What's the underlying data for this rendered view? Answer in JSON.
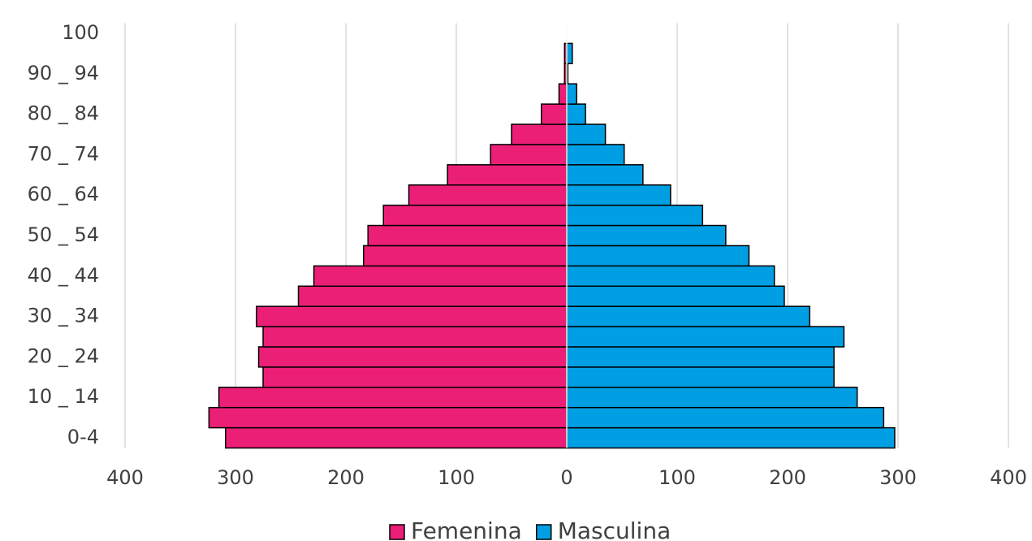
{
  "chart_data": {
    "type": "pyramid",
    "categories": [
      "0-4",
      null,
      "10 _ 14",
      null,
      "20 _ 24",
      null,
      "30 _ 34",
      null,
      "40 _ 44",
      null,
      "50 _ 54",
      null,
      "60 _ 64",
      null,
      "70 _ 74",
      null,
      "80 _ 84",
      null,
      "90 _ 94",
      null,
      "100"
    ],
    "series": [
      {
        "name": "Femenina",
        "color": "#ec1f77",
        "values": [
          -309,
          -324,
          -315,
          -275,
          -279,
          -275,
          -281,
          -243,
          -229,
          -184,
          -180,
          -166,
          -143,
          -108,
          -69,
          -50,
          -23,
          -7,
          -2,
          -2,
          0
        ]
      },
      {
        "name": "Masculina",
        "color": "#009fe3",
        "values": [
          297,
          287,
          263,
          242,
          242,
          251,
          220,
          197,
          188,
          165,
          144,
          123,
          94,
          69,
          52,
          35,
          17,
          9,
          1,
          5,
          0
        ]
      }
    ],
    "xlim": [
      -400,
      400
    ],
    "xticks": [
      {
        "value": -400,
        "label": "400"
      },
      {
        "value": -300,
        "label": "300"
      },
      {
        "value": -200,
        "label": "200"
      },
      {
        "value": -100,
        "label": "100"
      },
      0,
      100,
      200,
      300,
      400
    ],
    "grid": true,
    "legend": "bottom"
  }
}
